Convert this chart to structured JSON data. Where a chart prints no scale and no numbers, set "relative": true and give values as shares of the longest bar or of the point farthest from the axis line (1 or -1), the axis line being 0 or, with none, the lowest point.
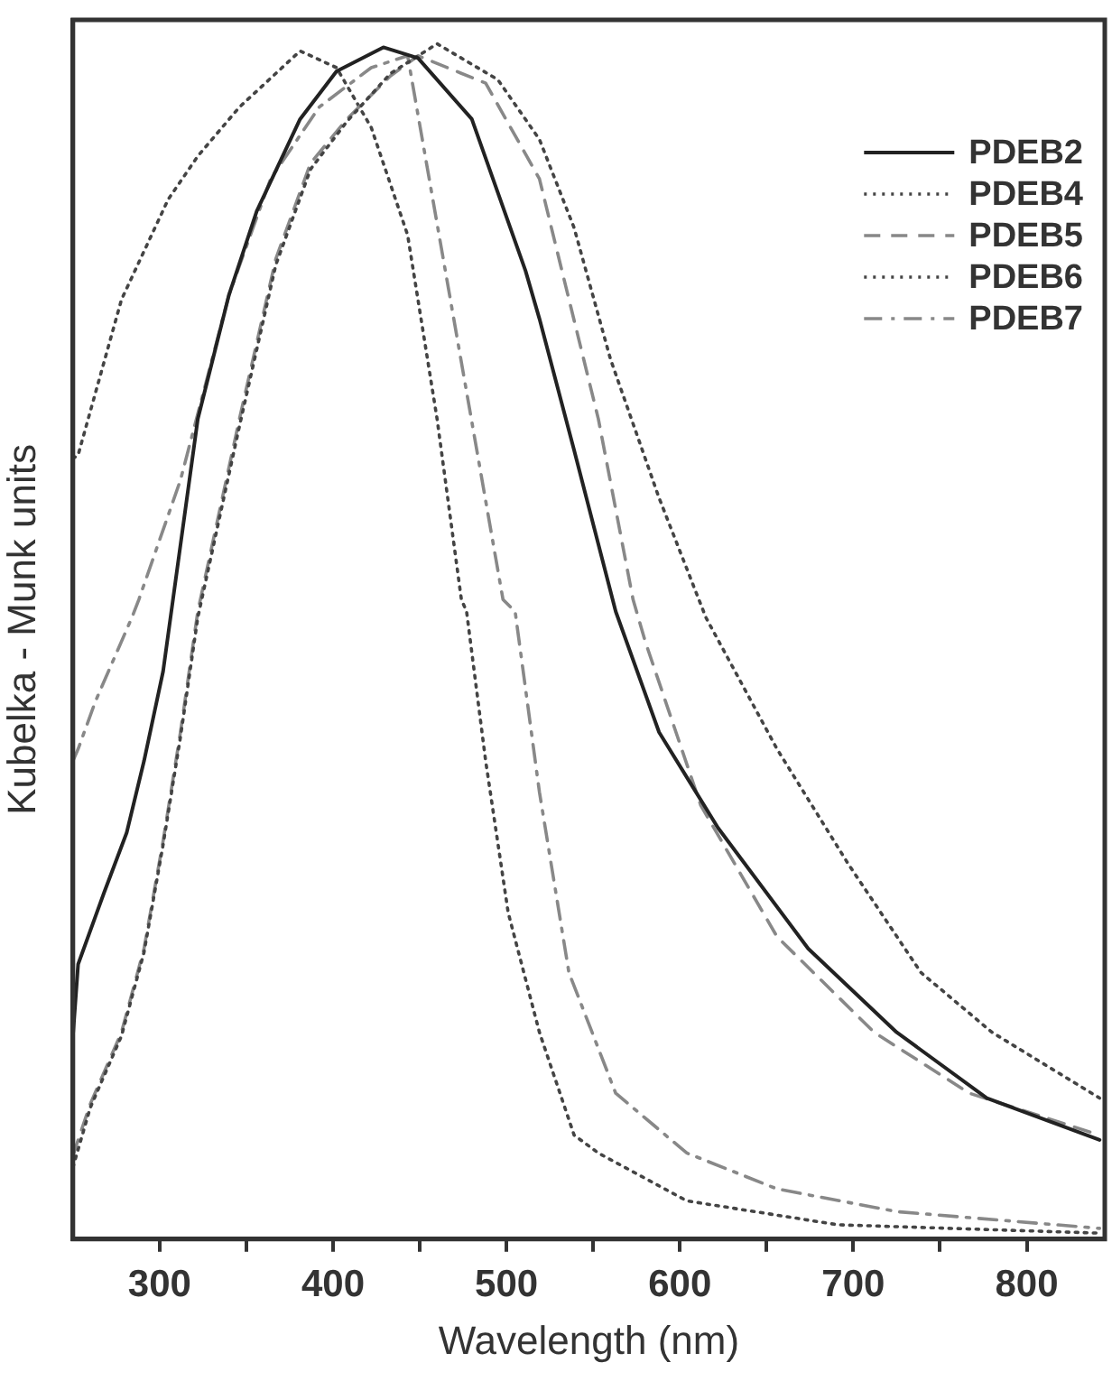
{
  "chart_data": {
    "type": "line",
    "xlabel": "Wavelength (nm)",
    "ylabel": "Kubelka - Munk units",
    "relative": true,
    "xlim": [
      250,
      845
    ],
    "xticks": [
      300,
      {
        "value": 350,
        "label": null
      },
      400,
      {
        "value": 450,
        "label": null
      },
      500,
      {
        "value": 550,
        "label": null
      },
      600,
      {
        "value": 650,
        "label": null
      },
      700,
      {
        "value": 750,
        "label": null
      },
      800
    ],
    "legend": "top right",
    "grid": false,
    "marker": "none",
    "series": [
      {
        "name": "PDEB2",
        "color": "#222222",
        "line_style": "solid",
        "x": [
          250,
          253,
          268,
          281,
          291,
          302,
          322,
          340,
          356,
          381,
          402,
          429,
          449,
          480,
          511,
          519,
          539,
          563,
          588,
          622,
          674,
          725,
          777,
          842
        ],
        "values": [
          0.17,
          0.23,
          0.29,
          0.34,
          0.4,
          0.475,
          0.686,
          0.79,
          0.86,
          0.937,
          0.977,
          0.997,
          0.988,
          0.937,
          0.81,
          0.77,
          0.66,
          0.525,
          0.424,
          0.344,
          0.243,
          0.173,
          0.118,
          0.083
        ]
      },
      {
        "name": "PDEB4",
        "color": "#444444",
        "line_style": "dotted",
        "x": [
          250,
          260,
          278,
          291,
          302,
          312,
          322,
          346,
          367,
          387,
          408,
          433,
          460,
          495,
          519,
          539,
          560,
          588,
          615,
          656,
          697,
          739,
          780,
          842
        ],
        "values": [
          0.06,
          0.11,
          0.17,
          0.24,
          0.33,
          0.42,
          0.52,
          0.68,
          0.815,
          0.895,
          0.935,
          0.975,
          1.0,
          0.97,
          0.92,
          0.846,
          0.736,
          0.62,
          0.52,
          0.41,
          0.314,
          0.223,
          0.173,
          0.118
        ]
      },
      {
        "name": "PDEB5",
        "color": "#888888",
        "line_style": "dashed",
        "x": [
          250,
          260,
          278,
          291,
          302,
          312,
          322,
          346,
          367,
          387,
          408,
          433,
          449,
          488,
          519,
          532,
          553,
          573,
          580,
          612,
          656,
          712,
          767,
          842
        ],
        "values": [
          0.07,
          0.113,
          0.173,
          0.243,
          0.333,
          0.424,
          0.525,
          0.686,
          0.82,
          0.9,
          0.937,
          0.973,
          0.99,
          0.967,
          0.887,
          0.81,
          0.686,
          0.535,
          0.5,
          0.363,
          0.253,
          0.173,
          0.122,
          0.087
        ]
      },
      {
        "name": "PDEB6",
        "color": "#444444",
        "line_style": "dotted",
        "x": [
          250,
          253,
          278,
          305,
          322,
          346,
          381,
          402,
          422,
          443,
          460,
          474,
          477,
          488,
          501,
          519,
          539,
          553,
          604,
          691,
          842
        ],
        "values": [
          0.653,
          0.656,
          0.786,
          0.87,
          0.906,
          0.947,
          0.994,
          0.98,
          0.93,
          0.84,
          0.686,
          0.535,
          0.525,
          0.4,
          0.273,
          0.173,
          0.087,
          0.072,
          0.032,
          0.012,
          0.005
        ]
      },
      {
        "name": "PDEB7",
        "color": "#888888",
        "line_style": "dashdot",
        "x": [
          250,
          253,
          263,
          284,
          288,
          312,
          340,
          364,
          392,
          422,
          443,
          498,
          505,
          519,
          536,
          563,
          604,
          656,
          725,
          842
        ],
        "values": [
          0.4,
          0.41,
          0.45,
          0.52,
          0.535,
          0.635,
          0.79,
          0.887,
          0.947,
          0.98,
          0.99,
          0.535,
          0.525,
          0.374,
          0.223,
          0.122,
          0.072,
          0.042,
          0.023,
          0.009
        ]
      }
    ]
  }
}
